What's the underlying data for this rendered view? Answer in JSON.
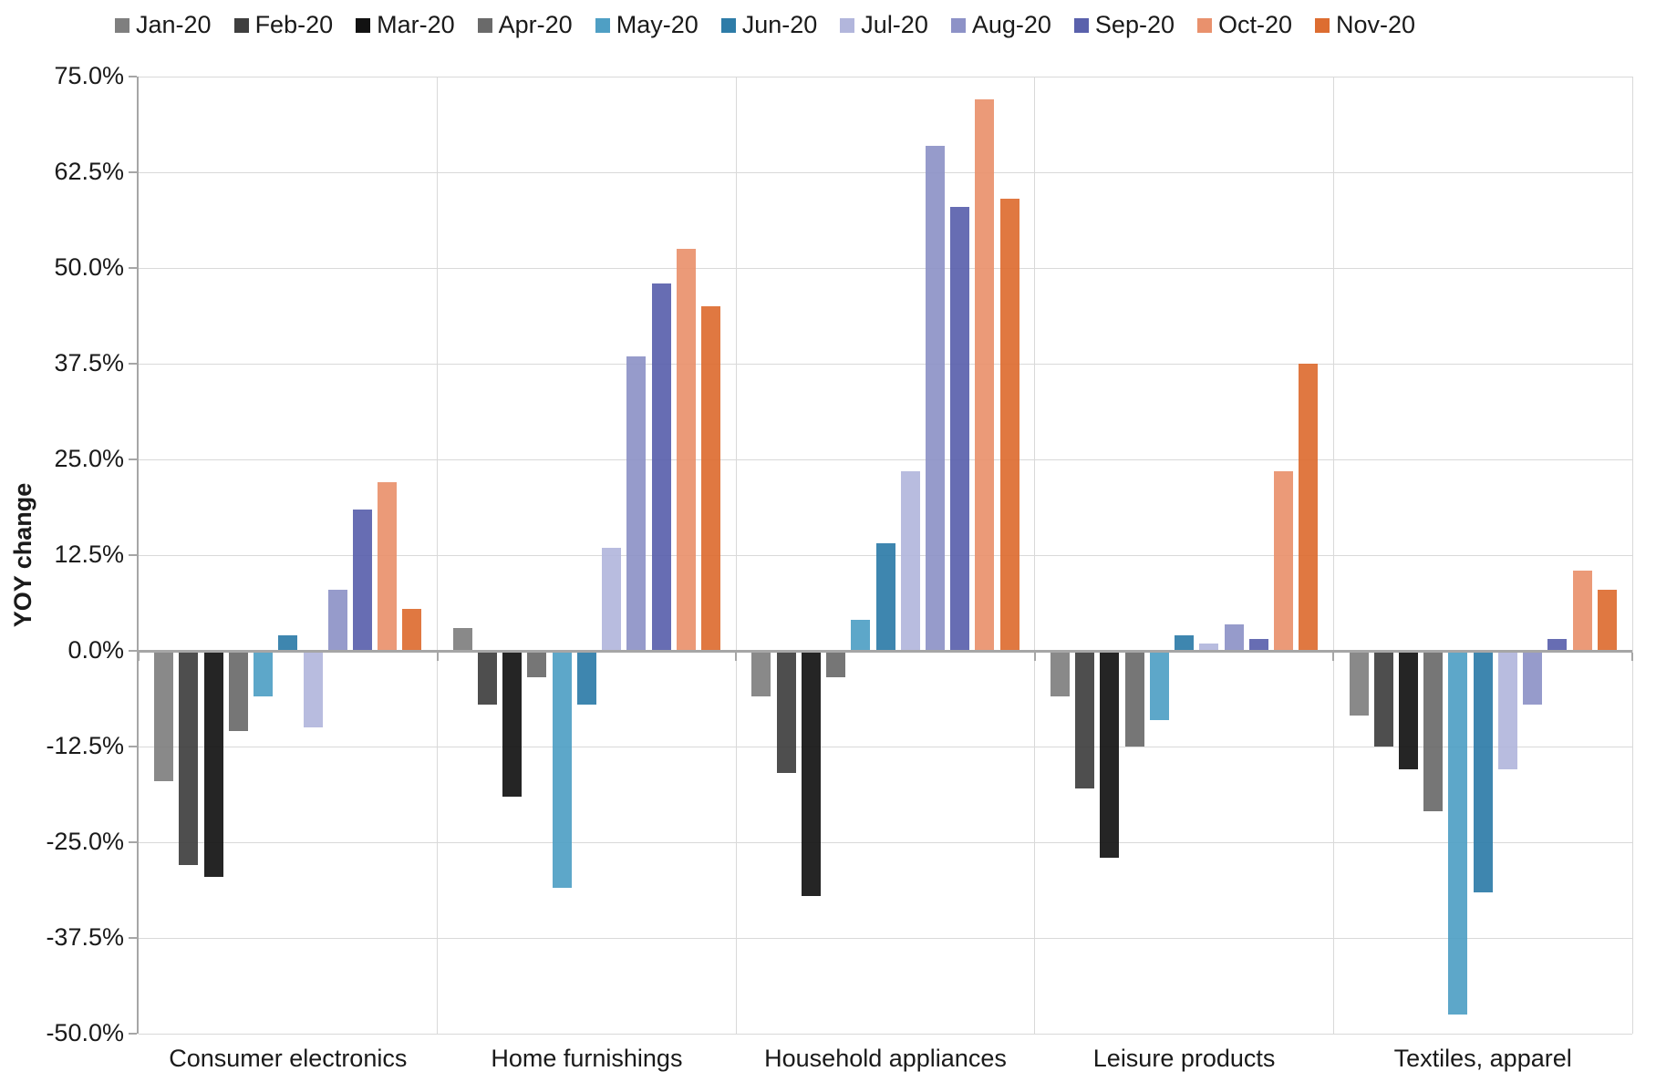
{
  "chart_data": {
    "type": "bar",
    "title": "",
    "ylabel": "YOY change",
    "xlabel": "",
    "ylim": [
      -50,
      75
    ],
    "grid": "horizontal-gridlines-with-category-separators",
    "legend_position": "top",
    "yticks": [
      {
        "value": 75,
        "label": "75.0%"
      },
      {
        "value": 62.5,
        "label": "62.5%"
      },
      {
        "value": 50,
        "label": "50.0%"
      },
      {
        "value": 37.5,
        "label": "37.5%"
      },
      {
        "value": 25,
        "label": "25.0%"
      },
      {
        "value": 12.5,
        "label": "12.5%"
      },
      {
        "value": 0,
        "label": "0.0%"
      },
      {
        "value": -12.5,
        "label": "-12.5%"
      },
      {
        "value": -25,
        "label": "-25.0%"
      },
      {
        "value": -37.5,
        "label": "-37.5%"
      },
      {
        "value": -50,
        "label": "-50.0%"
      }
    ],
    "categories": [
      "Consumer electronics",
      "Home furnishings",
      "Household appliances",
      "Leisure products",
      "Textiles, apparel"
    ],
    "series": [
      {
        "name": "Jan-20",
        "color": "#7f7f7f",
        "values": [
          -17,
          3,
          -6,
          -6,
          -8.5
        ]
      },
      {
        "name": "Feb-20",
        "color": "#3f3f3f",
        "values": [
          -28,
          -7,
          -16,
          -18,
          -12.5
        ]
      },
      {
        "name": "Mar-20",
        "color": "#121212",
        "values": [
          -29.5,
          -19,
          -32,
          -27,
          -15.5
        ]
      },
      {
        "name": "Apr-20",
        "color": "#6a6a6a",
        "values": [
          -10.5,
          -3.5,
          -3.5,
          -12.5,
          -21
        ]
      },
      {
        "name": "May-20",
        "color": "#4f9fc4",
        "values": [
          -6,
          -31,
          4,
          -9,
          -47.5
        ]
      },
      {
        "name": "Jun-20",
        "color": "#2e7ca8",
        "values": [
          2,
          -7,
          14,
          2,
          -31.5
        ]
      },
      {
        "name": "Jul-20",
        "color": "#b2b6dc",
        "values": [
          -10,
          13.5,
          23.5,
          1,
          -15.5
        ]
      },
      {
        "name": "Aug-20",
        "color": "#8d92c7",
        "values": [
          8,
          38.5,
          66,
          3.5,
          -7
        ]
      },
      {
        "name": "Sep-20",
        "color": "#5a61ac",
        "values": [
          18.5,
          48,
          58,
          1.5,
          1.5
        ]
      },
      {
        "name": "Oct-20",
        "color": "#e9916d",
        "values": [
          22,
          52.5,
          72,
          23.5,
          10.5
        ]
      },
      {
        "name": "Nov-20",
        "color": "#dd6d31",
        "values": [
          5.5,
          45,
          59,
          37.5,
          8
        ]
      }
    ]
  }
}
